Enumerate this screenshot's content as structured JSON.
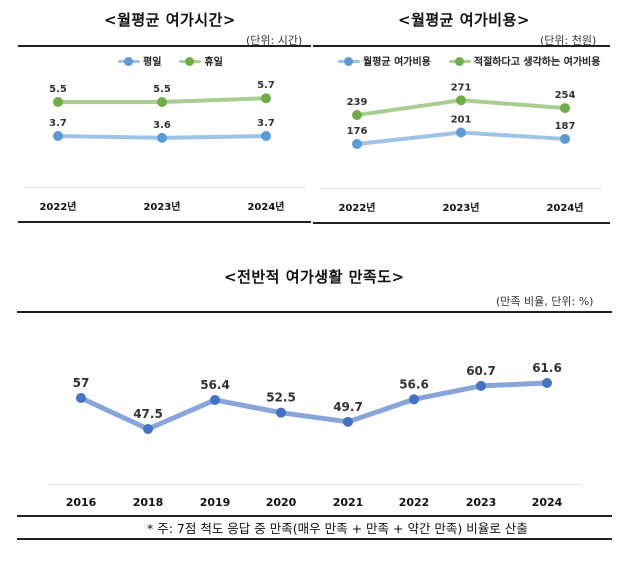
{
  "chart_data": [
    {
      "type": "line",
      "title": "<월평균 여가시간>",
      "unit": "(단위: 시간)",
      "categories": [
        "2022년",
        "2023년",
        "2024년"
      ],
      "series": [
        {
          "name": "평일",
          "values": [
            3.7,
            3.6,
            3.7
          ],
          "color": "#5b9bd5"
        },
        {
          "name": "휴일",
          "values": [
            5.5,
            5.5,
            5.7
          ],
          "color": "#70ad47"
        }
      ],
      "ylim": [
        0,
        8
      ],
      "legend": "top-center",
      "grid": false
    },
    {
      "type": "line",
      "title": "<월평균 여가비용>",
      "unit": "(단위: 천원)",
      "categories": [
        "2022년",
        "2023년",
        "2024년"
      ],
      "series": [
        {
          "name": "월평균 여가비용",
          "values": [
            176,
            201,
            187
          ],
          "color": "#5b9bd5"
        },
        {
          "name": "적절하다고 생각하는 여가비용",
          "values": [
            239,
            271,
            254
          ],
          "color": "#70ad47"
        }
      ],
      "ylim": [
        0,
        350
      ],
      "legend": "top-center",
      "grid": false
    },
    {
      "type": "line",
      "title": "<전반적 여가생활 만족도>",
      "unit": "(만족 비율, 단위: %)",
      "categories": [
        "2016",
        "2018",
        "2019",
        "2020",
        "2021",
        "2022",
        "2023",
        "2024"
      ],
      "series": [
        {
          "name": "만족도",
          "values": [
            57,
            47.5,
            56.4,
            52.5,
            49.7,
            56.6,
            60.7,
            61.6
          ],
          "color": "#4472c4"
        }
      ],
      "ylim": [
        30,
        70
      ],
      "legend": "none",
      "grid": false,
      "note": "* 주: 7점 척도 응답 중 만족(매우 만족 + 만족 + 약간 만족) 비율로 산출"
    }
  ]
}
